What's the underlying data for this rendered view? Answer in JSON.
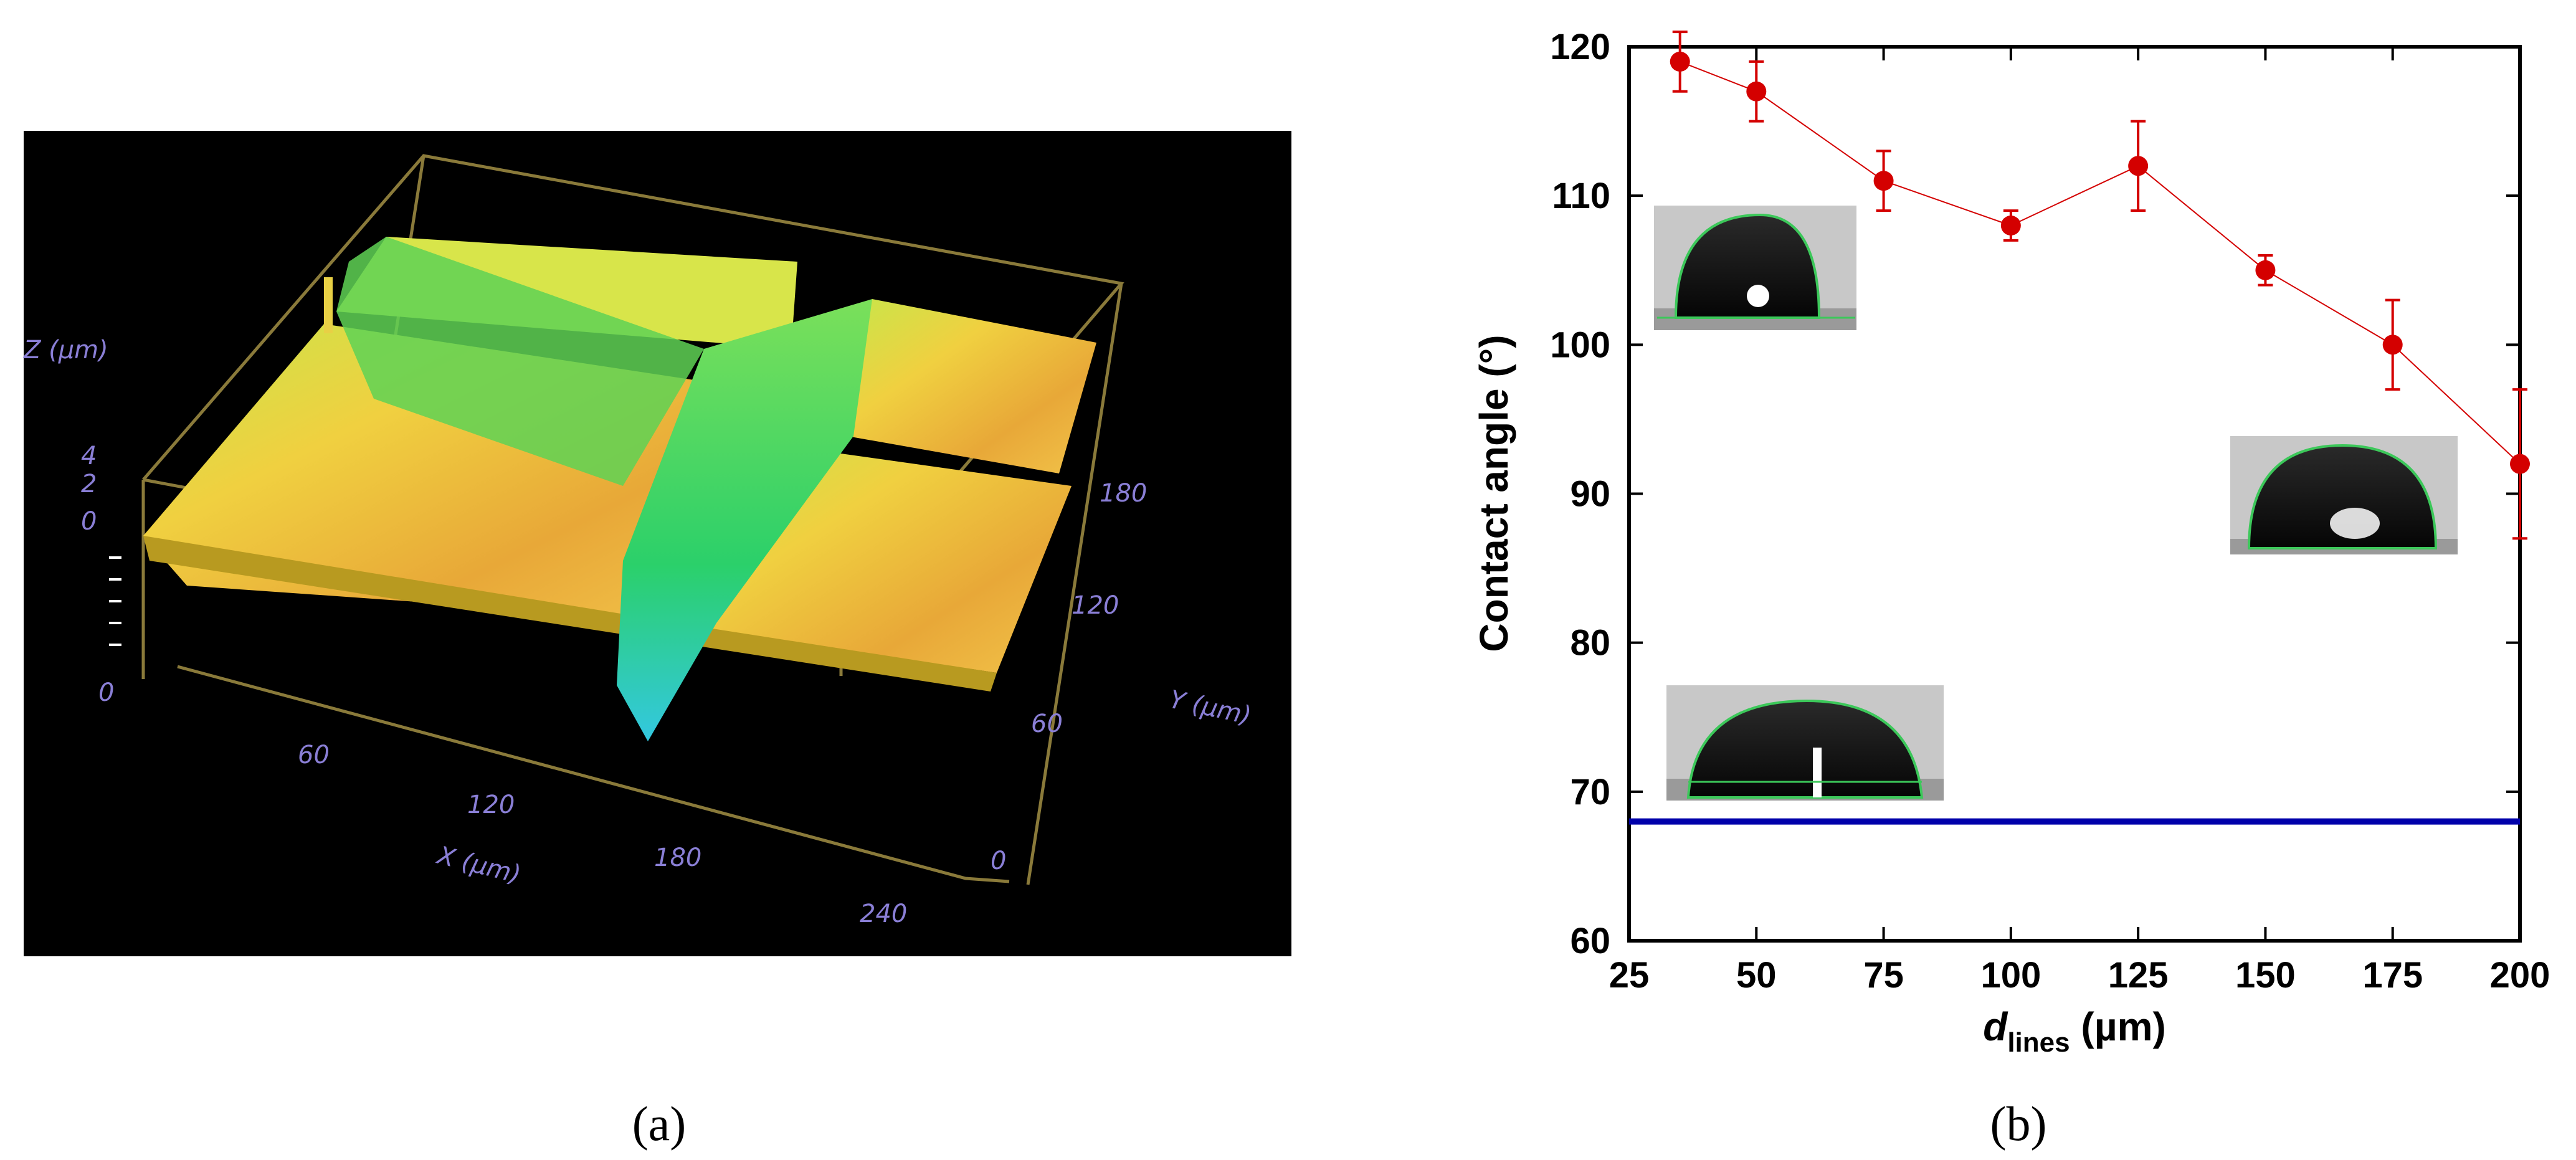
{
  "panel_a": {
    "caption": "(a)",
    "z_axis_label": "Z (µm)",
    "z_ticks": [
      "4",
      "2",
      "0"
    ],
    "z_ticks_lower": [
      "0"
    ],
    "x_axis_label": "X (µm)",
    "x_ticks": [
      "60",
      "120",
      "180",
      "240"
    ],
    "y_axis_label": "Y (µm)",
    "y_ticks": [
      "0",
      "60",
      "120",
      "180"
    ]
  },
  "panel_b": {
    "caption": "(b)"
  },
  "chart_data": {
    "type": "scatter",
    "xlabel_main": "d",
    "xlabel_sub": "lines",
    "xlabel_unit": " (µm)",
    "ylabel": "Contact angle (°)",
    "xlim": [
      25,
      200
    ],
    "ylim": [
      60,
      120
    ],
    "xticks": [
      25,
      50,
      75,
      100,
      125,
      150,
      175,
      200
    ],
    "yticks": [
      60,
      70,
      80,
      90,
      100,
      110,
      120
    ],
    "series": [
      {
        "x": [
          35,
          50,
          75,
          100,
          125,
          150,
          175,
          200
        ],
        "y": [
          119,
          117,
          111,
          108,
          112,
          105,
          100,
          92
        ],
        "err": [
          2,
          2,
          2,
          1,
          3,
          1,
          3,
          5
        ],
        "color": "#d40000"
      }
    ],
    "reference_line": {
      "y": 68,
      "color": "#0000aa"
    },
    "grid": false,
    "legend": "none"
  }
}
